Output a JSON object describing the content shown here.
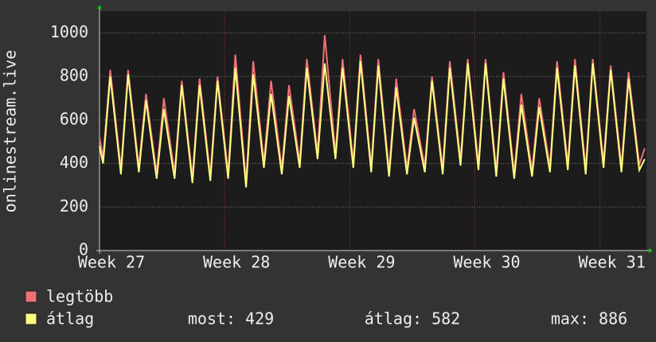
{
  "chart_data": {
    "type": "line",
    "ylabel": "onlinestream.live",
    "x": [
      0,
      0.2,
      0.6,
      1.2,
      1.6,
      2.2,
      2.6,
      3.2,
      3.6,
      4.2,
      4.6,
      5.2,
      5.6,
      6.2,
      6.6,
      7.2,
      7.6,
      8.2,
      8.6,
      9.2,
      9.6,
      10.2,
      10.6,
      11.2,
      11.6,
      12.2,
      12.6,
      13.2,
      13.6,
      14.2,
      14.6,
      15.2,
      15.6,
      16.2,
      16.6,
      17.2,
      17.6,
      18.2,
      18.6,
      19.2,
      19.6,
      20.2,
      20.6,
      21.2,
      21.6,
      22.2,
      22.6,
      23.2,
      23.6,
      24.2,
      24.6,
      25.2,
      25.6,
      26.2,
      26.6,
      27.2,
      27.6,
      28.2,
      28.6,
      29.2,
      29.6,
      30.2,
      30.5
    ],
    "series": [
      {
        "name": "legtöbb",
        "color": "#f07078",
        "values": [
          520,
          425,
          830,
          375,
          830,
          385,
          720,
          355,
          700,
          355,
          780,
          335,
          790,
          345,
          800,
          355,
          900,
          315,
          870,
          405,
          780,
          375,
          760,
          405,
          880,
          445,
          990,
          445,
          880,
          405,
          900,
          385,
          880,
          365,
          790,
          375,
          650,
          385,
          800,
          375,
          870,
          415,
          880,
          395,
          880,
          365,
          820,
          355,
          720,
          365,
          700,
          385,
          870,
          395,
          880,
          375,
          880,
          405,
          850,
          385,
          820,
          395,
          470
        ]
      },
      {
        "name": "átlag",
        "color": "#ffff80",
        "values": [
          480,
          400,
          800,
          350,
          810,
          360,
          690,
          330,
          650,
          330,
          760,
          310,
          760,
          320,
          780,
          330,
          840,
          290,
          810,
          380,
          720,
          350,
          710,
          380,
          840,
          420,
          860,
          420,
          840,
          380,
          870,
          360,
          850,
          340,
          750,
          350,
          610,
          360,
          780,
          350,
          840,
          390,
          860,
          370,
          860,
          340,
          790,
          330,
          670,
          340,
          660,
          360,
          840,
          370,
          850,
          350,
          860,
          380,
          830,
          360,
          790,
          370,
          420
        ]
      }
    ],
    "stats": [
      "most: 429",
      "átlag: 582",
      "max: 886"
    ],
    "xlim": [
      0,
      30.6
    ],
    "xticks": [
      {
        "value": 0,
        "label": "Week 27"
      },
      {
        "value": 7,
        "label": "Week 28"
      },
      {
        "value": 14,
        "label": "Week 29"
      },
      {
        "value": 21,
        "label": "Week 30"
      },
      {
        "value": 28,
        "label": "Week 31"
      }
    ],
    "ylim": [
      0,
      1100
    ],
    "yticks": [
      0,
      200,
      400,
      600,
      800,
      1000
    ],
    "grid": true
  }
}
